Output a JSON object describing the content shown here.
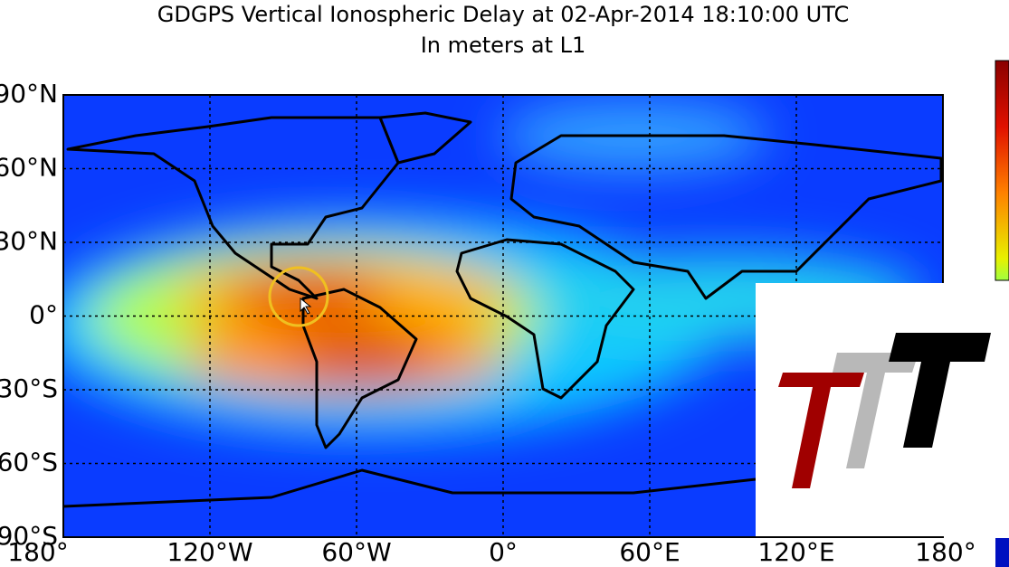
{
  "header": {
    "title": "GDGPS Vertical Ionospheric Delay at 02-Apr-2014 18:10:00 UTC",
    "subtitle": "In meters at L1"
  },
  "map": {
    "lat_labels": [
      "90°N",
      "60°N",
      "30°N",
      "0°",
      "30°S",
      "60°S",
      "90°S"
    ],
    "lon_labels": [
      "180°",
      "120°W",
      "60°W",
      "0°",
      "60°E",
      "120°E",
      "180°"
    ]
  }
}
